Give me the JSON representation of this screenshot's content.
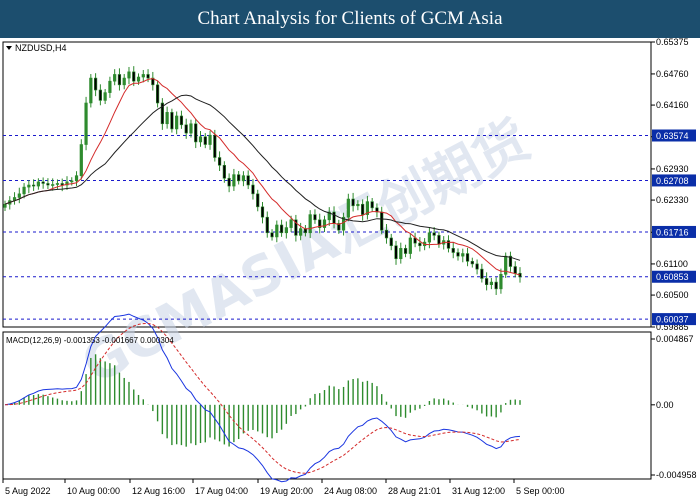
{
  "banner": {
    "title": "Chart Analysis for Clients of GCM Asia"
  },
  "price_panel": {
    "symbol_label": "NZDUSD,H4",
    "axis_ticks": [
      "0.65375",
      "0.64760",
      "0.64160",
      "0.63550",
      "0.62930",
      "0.62330",
      "0.61710",
      "0.61100",
      "0.60500",
      "0.59885"
    ],
    "levels": [
      {
        "label": "0.63574",
        "value": 0.63574
      },
      {
        "label": "0.62708",
        "value": 0.62708
      },
      {
        "label": "0.61716",
        "value": 0.61716
      },
      {
        "label": "0.60853",
        "value": 0.60853
      },
      {
        "label": "0.60037",
        "value": 0.60037
      }
    ],
    "colors": {
      "level_line": "#1a1acc",
      "tag_bg": "#0a2ea8",
      "candle": "#2e8b2e",
      "ma_fast": "#d42a2a",
      "ma_slow": "#202020"
    },
    "watermark_text": "GCMASIA汇创期货"
  },
  "macd_panel": {
    "label": "MACD(12,26,9) -0.001353 -0.001667 0.000304",
    "axis_ticks": [
      "0.004867",
      "0.00",
      "-0.004958"
    ],
    "colors": {
      "histogram": "#2e8b2e",
      "macd": "#1a35e0",
      "signal": "#d42a2a"
    }
  },
  "time_axis": [
    "5 Aug 2022",
    "10 Aug 00:00",
    "12 Aug 16:00",
    "17 Aug 04:00",
    "19 Aug 20:00",
    "24 Aug 08:00",
    "28 Aug 21:01",
    "31 Aug 12:00",
    "5 Sep 00:00"
  ],
  "chart_data": {
    "type": "candlestick",
    "symbol": "NZDUSD",
    "timeframe": "H4",
    "y_range": [
      0.59885,
      0.65375
    ],
    "closes": [
      0.6225,
      0.6232,
      0.6238,
      0.6245,
      0.6258,
      0.6262,
      0.626,
      0.6268,
      0.6265,
      0.6262,
      0.6263,
      0.6265,
      0.6262,
      0.6268,
      0.627,
      0.628,
      0.634,
      0.642,
      0.6468,
      0.6445,
      0.6425,
      0.644,
      0.6462,
      0.6475,
      0.6455,
      0.6468,
      0.648,
      0.6462,
      0.647,
      0.6475,
      0.6468,
      0.6455,
      0.642,
      0.638,
      0.6402,
      0.637,
      0.6395,
      0.6378,
      0.6362,
      0.638,
      0.6345,
      0.6355,
      0.634,
      0.6358,
      0.6315,
      0.63,
      0.6275,
      0.626,
      0.6282,
      0.627,
      0.628,
      0.6262,
      0.6245,
      0.622,
      0.62,
      0.617,
      0.6162,
      0.6185,
      0.617,
      0.618,
      0.6195,
      0.6165,
      0.6178,
      0.617,
      0.6205,
      0.6195,
      0.618,
      0.6195,
      0.621,
      0.6188,
      0.6175,
      0.62,
      0.6235,
      0.6222,
      0.6225,
      0.6205,
      0.623,
      0.6218,
      0.621,
      0.6175,
      0.616,
      0.6145,
      0.612,
      0.614,
      0.613,
      0.616,
      0.615,
      0.6145,
      0.6152,
      0.617,
      0.6165,
      0.6148,
      0.6155,
      0.614,
      0.6132,
      0.6125,
      0.613,
      0.6115,
      0.611,
      0.61,
      0.6082,
      0.607,
      0.6075,
      0.6062,
      0.609,
      0.6125,
      0.6105,
      0.6092,
      0.6085
    ],
    "horizontal_levels": [
      0.63574,
      0.62708,
      0.61716,
      0.60853,
      0.60037
    ],
    "macd": {
      "macd": -0.001353,
      "signal": -0.001667,
      "histogram": 0.000304
    }
  }
}
